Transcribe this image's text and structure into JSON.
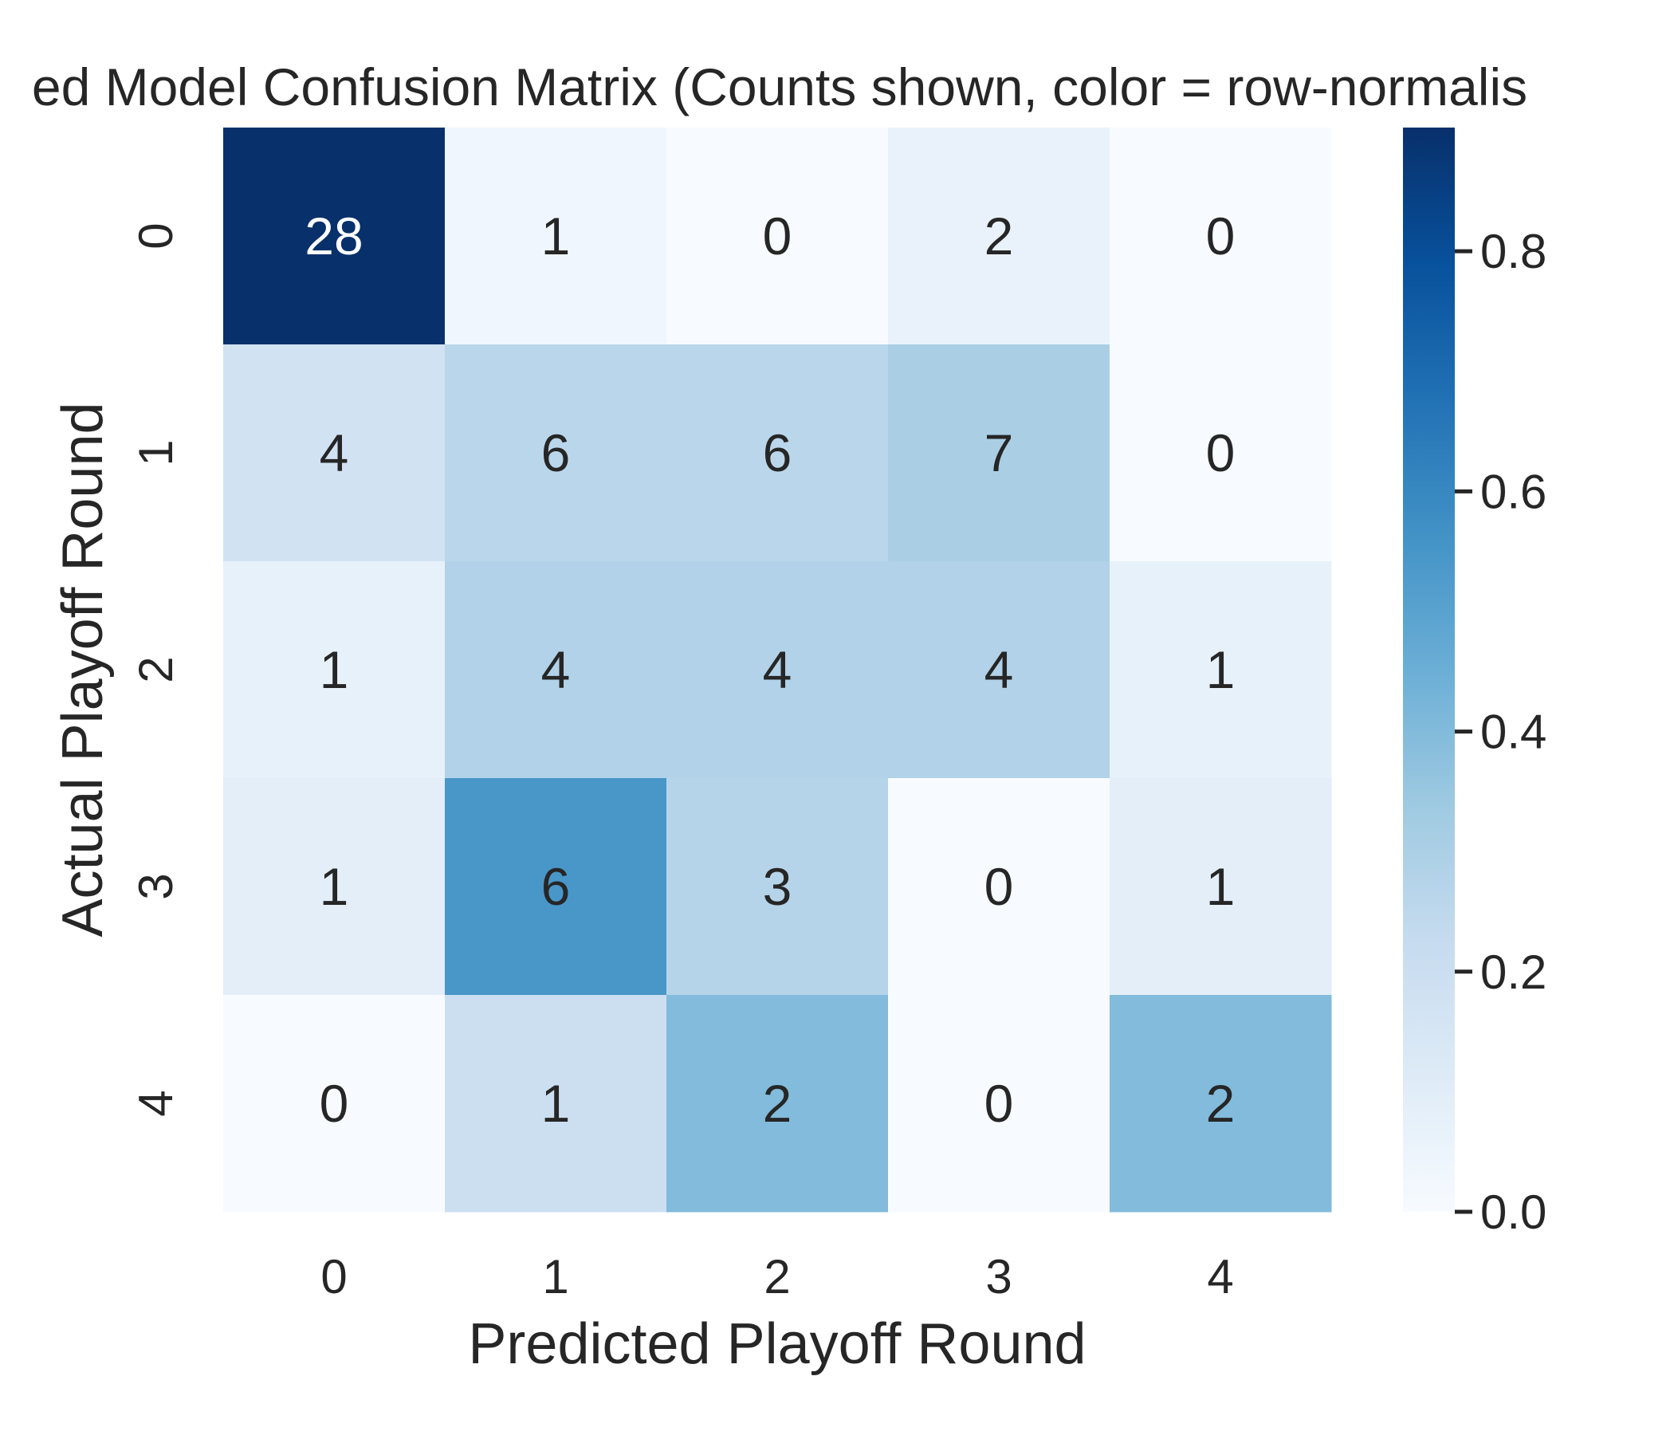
{
  "chart_data": {
    "type": "heatmap",
    "title": "ed Model Confusion Matrix (Counts shown, color = row-normalis",
    "xlabel": "Predicted Playoff Round",
    "ylabel": "Actual Playoff Round",
    "x_categories": [
      "0",
      "1",
      "2",
      "3",
      "4"
    ],
    "y_categories": [
      "0",
      "1",
      "2",
      "3",
      "4"
    ],
    "counts": [
      [
        28,
        1,
        0,
        2,
        0
      ],
      [
        4,
        6,
        6,
        7,
        0
      ],
      [
        1,
        4,
        4,
        4,
        1
      ],
      [
        1,
        6,
        3,
        0,
        1
      ],
      [
        0,
        1,
        2,
        0,
        2
      ]
    ],
    "color_values": [
      [
        0.903,
        0.032,
        0.0,
        0.065,
        0.0
      ],
      [
        0.174,
        0.261,
        0.261,
        0.304,
        0.0
      ],
      [
        0.071,
        0.286,
        0.286,
        0.286,
        0.071
      ],
      [
        0.091,
        0.545,
        0.273,
        0.0,
        0.091
      ],
      [
        0.0,
        0.2,
        0.4,
        0.0,
        0.4
      ]
    ],
    "colorbar": {
      "ticks": [
        0.0,
        0.2,
        0.4,
        0.6,
        0.8
      ],
      "tick_labels": [
        "0.0",
        "0.2",
        "0.4",
        "0.6",
        "0.8"
      ],
      "range": [
        0.0,
        0.903
      ],
      "colormap": "Blues"
    },
    "grid": false
  }
}
